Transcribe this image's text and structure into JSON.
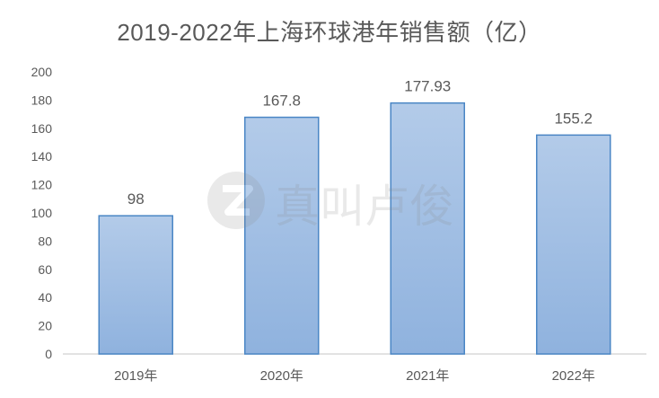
{
  "chart_data": {
    "type": "bar",
    "title": "2019-2022年上海环球港年销售额（亿）",
    "categories": [
      "2019年",
      "2020年",
      "2021年",
      "2022年"
    ],
    "values": [
      98,
      167.8,
      177.93,
      155.2
    ],
    "data_labels": [
      "98",
      "167.8",
      "177.93",
      "155.2"
    ],
    "ylim": [
      0,
      200
    ],
    "yticks": [
      0,
      20,
      40,
      60,
      80,
      100,
      120,
      140,
      160,
      180,
      200
    ],
    "xlabel": "",
    "ylabel": "",
    "grid": false,
    "legend": "none",
    "colors": {
      "bar_top": "#b3cbe9",
      "bar_bottom": "#8fb2de",
      "bar_border": "#4a86c5",
      "axis": "#d9d9d9",
      "text": "#595959"
    }
  },
  "watermark": {
    "text": "真叫卢俊",
    "icon": "z-logo-icon"
  }
}
